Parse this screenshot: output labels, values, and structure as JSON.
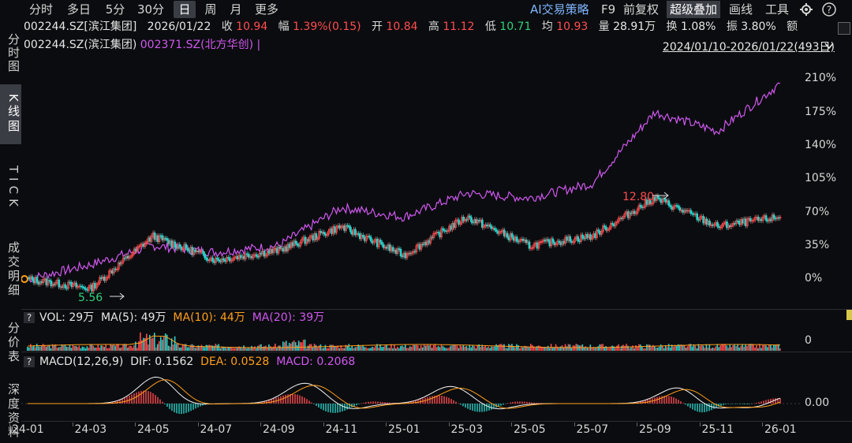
{
  "toolbar": {
    "periods": [
      "分时",
      "多日",
      "5分",
      "30分",
      "日",
      "周",
      "月",
      "更多"
    ],
    "active_period": "日",
    "right": {
      "ai": "AI交易策略",
      "f9": "F9",
      "adjust": "前复权",
      "overlay": "超级叠加",
      "draw": "画线",
      "tools": "工具"
    }
  },
  "left_tabs": [
    "分时图",
    "K线图",
    "TICK",
    "成交明细",
    "分价表",
    "深度资料"
  ],
  "quote": {
    "code": "002244.SZ[滨江集团]",
    "date": "2026/01/22",
    "close_label": "收",
    "close": "10.94",
    "chg_label": "幅",
    "chg": "1.39%(0.15)",
    "open_label": "开",
    "open": "10.84",
    "high_label": "高",
    "high": "11.12",
    "low_label": "低",
    "low": "10.71",
    "avg_label": "均",
    "avg": "10.93",
    "vol_label": "量",
    "vol": "28.91万",
    "turn_label": "换",
    "turn": "1.08%",
    "amp_label": "振",
    "amp": "3.80%",
    "amt_label": "额"
  },
  "compare": {
    "main": "002244.SZ(滨江集团)",
    "other": "002371.SZ(北方华创)",
    "sep": "|",
    "range": "2024/01/10-2026/01/22(493日)"
  },
  "main_chart": {
    "y_ticks": [
      "210%",
      "175%",
      "140%",
      "105%",
      "70%",
      "35%",
      "0%"
    ],
    "high_label": "12.80",
    "low_label": "5.56"
  },
  "volume": {
    "label": "VOL: 29万",
    "ma5": "MA(5): 49万",
    "ma10": "MA(10): 44万",
    "ma20": "MA(20): 39万",
    "axis": "0",
    "help": "?"
  },
  "macd": {
    "label": "MACD(12,26,9)",
    "dif": "DIF: 0.1562",
    "dea": "DEA: 0.0528",
    "macd": "MACD: 0.2068",
    "axis": "0.00",
    "help": "?"
  },
  "x_ticks": [
    "24-01",
    "24-03",
    "24-05",
    "24-07",
    "24-09",
    "24-11",
    "25-01",
    "25-03",
    "25-05",
    "25-07",
    "25-09",
    "25-11",
    "26-01"
  ],
  "chart_data": {
    "type": "line",
    "x": [
      "24-01",
      "24-03",
      "24-05",
      "24-07",
      "24-09",
      "24-11",
      "25-01",
      "25-03",
      "25-05",
      "25-07",
      "25-09",
      "25-11",
      "26-01"
    ],
    "series": [
      {
        "name": "002371.SZ(北方华创)",
        "values": [
          0,
          15,
          35,
          28,
          35,
          75,
          65,
          90,
          85,
          100,
          175,
          155,
          205
        ]
      },
      {
        "name": "002244.SZ(滨江集团)",
        "values": [
          0,
          -10,
          45,
          20,
          30,
          55,
          25,
          65,
          35,
          45,
          85,
          55,
          65
        ]
      }
    ],
    "ylim": [
      -25,
      225
    ],
    "colors": {
      "compare": "#d058f0",
      "main_up": "#ff4d4f",
      "main_down": "#2bd1c8"
    }
  }
}
